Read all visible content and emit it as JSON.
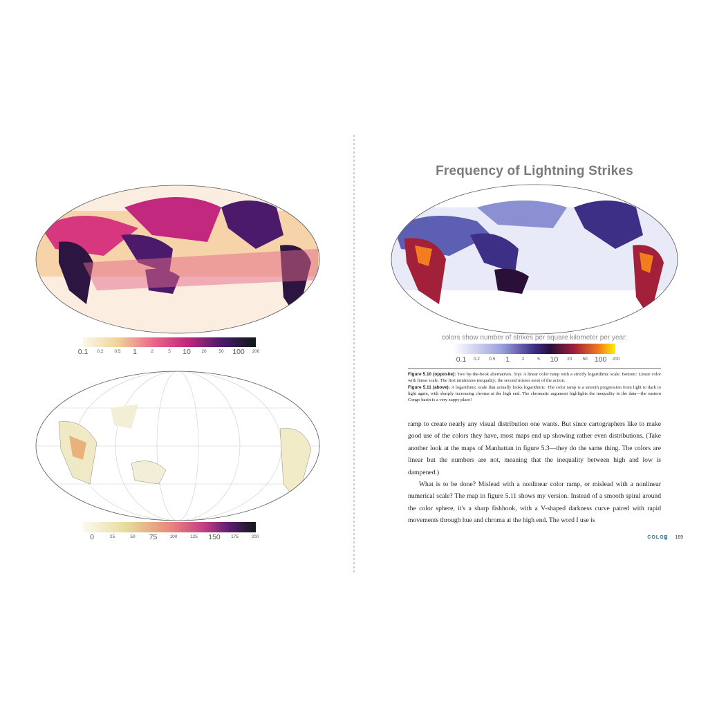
{
  "left_page": {
    "legend_top": {
      "ticks": [
        0.1,
        0.2,
        0.5,
        1,
        2,
        5,
        10,
        20,
        50,
        100,
        200
      ]
    },
    "legend_bottom": {
      "ticks": [
        0,
        25,
        50,
        75,
        100,
        125,
        150,
        175,
        200
      ]
    }
  },
  "right_page": {
    "title": "Frequency of Lightning Strikes",
    "legend": {
      "caption": "colors show number of strikes per square kilometer per year:",
      "ticks": [
        0.1,
        0.2,
        0.5,
        1,
        2,
        5,
        10,
        20,
        50,
        100,
        200
      ]
    },
    "captions": [
      {
        "label": "Figure 5.10 (opposite):",
        "text": "Two by-the-book alternatives. Top: A linear color ramp with a strictly logarithmic scale. Bottom: Linear color with linear scale. The first minimizes inequality; the second misses most of the action."
      },
      {
        "label": "Figure 5.11 (above):",
        "text": "A logarithmic scale that actually looks logarithmic. The color ramp is a smooth progression from light to dark to light again, with sharply increasing chroma at the high end. The chromatic argument highlights the inequality in the data—the eastern Congo basin is a very zappy place!"
      }
    ],
    "body": [
      "ramp to create nearly any visual distribution one wants. But since cartographers like to make good use of the colors they have, most maps end up showing rather even distributions. (Take another look at the maps of Manhattan in figure 5.3—they do the same thing. The colors are linear but the numbers are not, meaning that the inequality between high and low is dampened.)",
      "What is to be done? Mislead with a nonlinear color ramp, or mislead with a nonlinear numerical scale? The map in figure 5.11 shows my version. Instead of a smooth spiral around the color sphere, it's a sharp fishhook, with a V-shaped darkness curve paired with rapid movements through hue and chroma at the high end. The word I use is"
    ],
    "footer": {
      "section": "COLOR",
      "page": "169"
    }
  }
}
